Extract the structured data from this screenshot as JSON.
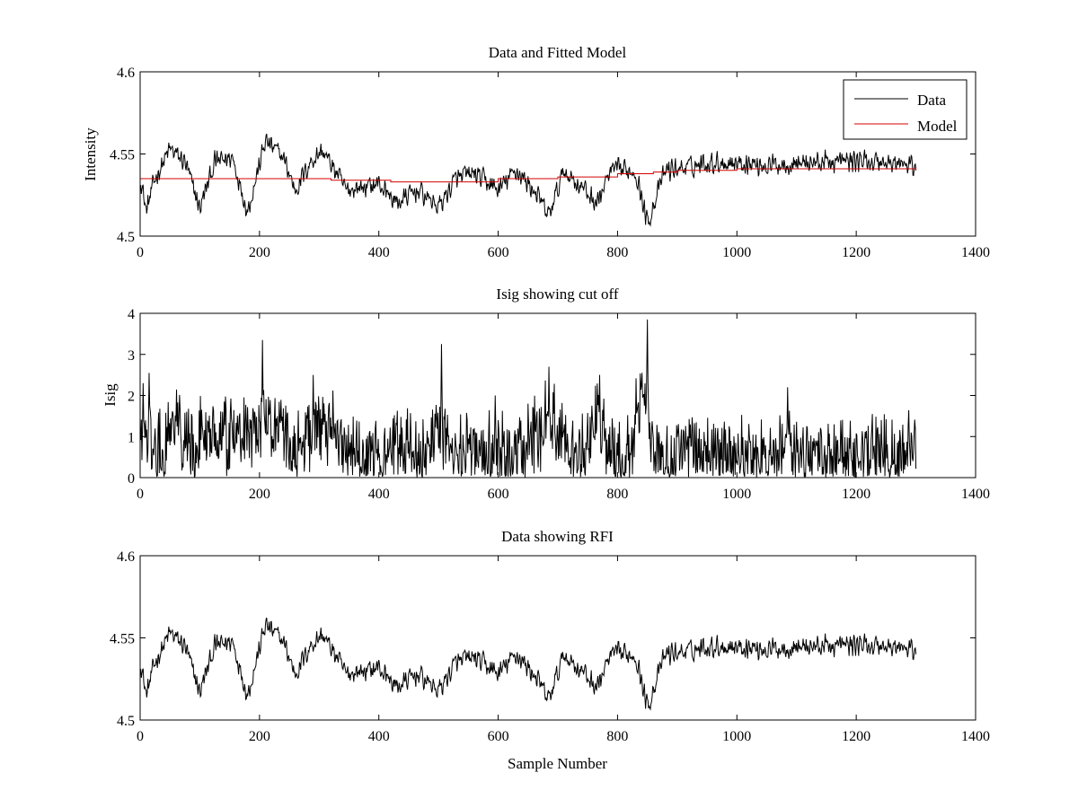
{
  "colors": {
    "data": "#000000",
    "model": "#d40000",
    "axes": "#000000",
    "background": "#ffffff"
  },
  "chart_data": [
    {
      "type": "line",
      "title": "Data and Fitted Model",
      "xlabel": "",
      "ylabel": "Intensity",
      "xlim": [
        0,
        1400
      ],
      "ylim": [
        4.5,
        4.6
      ],
      "xticks": [
        0,
        200,
        400,
        600,
        800,
        1000,
        1200,
        1400
      ],
      "yticks": [
        4.5,
        4.55,
        4.6
      ],
      "xtick_labels": [
        "0",
        "200",
        "400",
        "600",
        "800",
        "1000",
        "1200",
        "1400"
      ],
      "ytick_labels": [
        "4.5",
        "4.55",
        "4.6"
      ],
      "grid": false,
      "legend": {
        "placement": "top-right",
        "entries": [
          "Data",
          "Model"
        ]
      },
      "series": [
        {
          "name": "Data",
          "color": "#000000",
          "x_range": [
            1,
            1300
          ],
          "envelope": [
            [
              0,
              4.538
            ],
            [
              10,
              4.515
            ],
            [
              25,
              4.535
            ],
            [
              50,
              4.553
            ],
            [
              75,
              4.545
            ],
            [
              100,
              4.517
            ],
            [
              125,
              4.545
            ],
            [
              155,
              4.548
            ],
            [
              180,
              4.515
            ],
            [
              210,
              4.558
            ],
            [
              240,
              4.548
            ],
            [
              260,
              4.528
            ],
            [
              285,
              4.545
            ],
            [
              305,
              4.552
            ],
            [
              330,
              4.538
            ],
            [
              345,
              4.528
            ],
            [
              375,
              4.53
            ],
            [
              400,
              4.532
            ],
            [
              430,
              4.52
            ],
            [
              465,
              4.528
            ],
            [
              500,
              4.518
            ],
            [
              530,
              4.535
            ],
            [
              560,
              4.538
            ],
            [
              600,
              4.528
            ],
            [
              630,
              4.54
            ],
            [
              660,
              4.528
            ],
            [
              685,
              4.512
            ],
            [
              710,
              4.54
            ],
            [
              740,
              4.53
            ],
            [
              765,
              4.52
            ],
            [
              790,
              4.54
            ],
            [
              830,
              4.54
            ],
            [
              850,
              4.508
            ],
            [
              880,
              4.54
            ],
            [
              920,
              4.542
            ],
            [
              950,
              4.545
            ],
            [
              1000,
              4.545
            ],
            [
              1050,
              4.543
            ],
            [
              1100,
              4.545
            ],
            [
              1150,
              4.545
            ],
            [
              1200,
              4.546
            ],
            [
              1250,
              4.545
            ],
            [
              1300,
              4.542
            ]
          ],
          "noise_amplitude": 0.008
        },
        {
          "name": "Model",
          "color": "#d40000",
          "x": [
            0,
            240,
            320,
            420,
            520,
            600,
            700,
            760,
            800,
            860,
            900,
            1000,
            1100,
            1300
          ],
          "y": [
            4.535,
            4.535,
            4.534,
            4.533,
            4.533,
            4.535,
            4.536,
            4.536,
            4.538,
            4.539,
            4.54,
            4.541,
            4.541,
            4.542
          ]
        }
      ]
    },
    {
      "type": "line",
      "title": "Isig showing cut off",
      "xlabel": "",
      "ylabel": "Isig",
      "xlim": [
        0,
        1400
      ],
      "ylim": [
        0,
        4
      ],
      "xticks": [
        0,
        200,
        400,
        600,
        800,
        1000,
        1200,
        1400
      ],
      "yticks": [
        0,
        1,
        2,
        3,
        4
      ],
      "xtick_labels": [
        "0",
        "200",
        "400",
        "600",
        "800",
        "1000",
        "1200",
        "1400"
      ],
      "ytick_labels": [
        "0",
        "1",
        "2",
        "3",
        "4"
      ],
      "grid": false,
      "series": [
        {
          "color": "#000000",
          "x_range": [
            1,
            1300
          ],
          "envelope": [
            [
              0,
              0.8
            ],
            [
              10,
              1.2
            ],
            [
              30,
              0.6
            ],
            [
              60,
              1.2
            ],
            [
              100,
              1.0
            ],
            [
              150,
              1.1
            ],
            [
              180,
              1.0
            ],
            [
              210,
              1.5
            ],
            [
              240,
              1.2
            ],
            [
              260,
              0.5
            ],
            [
              300,
              1.5
            ],
            [
              330,
              0.8
            ],
            [
              350,
              0.5
            ],
            [
              400,
              0.6
            ],
            [
              430,
              0.8
            ],
            [
              470,
              0.6
            ],
            [
              500,
              1.0
            ],
            [
              520,
              0.6
            ],
            [
              560,
              0.5
            ],
            [
              600,
              0.6
            ],
            [
              640,
              0.6
            ],
            [
              670,
              1.0
            ],
            [
              685,
              1.8
            ],
            [
              700,
              0.8
            ],
            [
              740,
              0.6
            ],
            [
              765,
              1.4
            ],
            [
              790,
              0.5
            ],
            [
              820,
              0.5
            ],
            [
              845,
              2.3
            ],
            [
              860,
              0.5
            ],
            [
              900,
              0.6
            ],
            [
              1000,
              0.5
            ],
            [
              1100,
              0.5
            ],
            [
              1200,
              0.5
            ],
            [
              1300,
              0.6
            ]
          ],
          "noise_amplitude": 0.8,
          "peaks": [
            [
              5,
              2.3
            ],
            [
              15,
              2.55
            ],
            [
              205,
              3.35
            ],
            [
              290,
              2.5
            ],
            [
              505,
              3.25
            ],
            [
              595,
              2.0
            ],
            [
              685,
              2.7
            ],
            [
              770,
              2.5
            ],
            [
              850,
              3.85
            ],
            [
              1085,
              2.2
            ]
          ]
        }
      ]
    },
    {
      "type": "line",
      "title": "Data showing RFI",
      "xlabel": "Sample Number",
      "ylabel": "",
      "xlim": [
        0,
        1400
      ],
      "ylim": [
        4.5,
        4.6
      ],
      "xticks": [
        0,
        200,
        400,
        600,
        800,
        1000,
        1200,
        1400
      ],
      "yticks": [
        4.5,
        4.55,
        4.6
      ],
      "xtick_labels": [
        "0",
        "200",
        "400",
        "600",
        "800",
        "1000",
        "1200",
        "1400"
      ],
      "ytick_labels": [
        "4.5",
        "4.55",
        "4.6"
      ],
      "grid": false,
      "series": [
        {
          "color": "#000000",
          "x_range": [
            1,
            1300
          ],
          "envelope": [
            [
              0,
              4.538
            ],
            [
              10,
              4.515
            ],
            [
              25,
              4.535
            ],
            [
              50,
              4.553
            ],
            [
              75,
              4.545
            ],
            [
              100,
              4.517
            ],
            [
              125,
              4.545
            ],
            [
              155,
              4.548
            ],
            [
              180,
              4.515
            ],
            [
              210,
              4.558
            ],
            [
              240,
              4.548
            ],
            [
              260,
              4.528
            ],
            [
              285,
              4.545
            ],
            [
              305,
              4.552
            ],
            [
              330,
              4.538
            ],
            [
              345,
              4.528
            ],
            [
              375,
              4.53
            ],
            [
              400,
              4.532
            ],
            [
              430,
              4.52
            ],
            [
              465,
              4.528
            ],
            [
              500,
              4.518
            ],
            [
              530,
              4.535
            ],
            [
              560,
              4.538
            ],
            [
              600,
              4.528
            ],
            [
              630,
              4.54
            ],
            [
              660,
              4.528
            ],
            [
              685,
              4.512
            ],
            [
              710,
              4.54
            ],
            [
              740,
              4.53
            ],
            [
              765,
              4.52
            ],
            [
              790,
              4.54
            ],
            [
              830,
              4.54
            ],
            [
              850,
              4.508
            ],
            [
              880,
              4.54
            ],
            [
              920,
              4.542
            ],
            [
              950,
              4.545
            ],
            [
              1000,
              4.545
            ],
            [
              1050,
              4.543
            ],
            [
              1100,
              4.545
            ],
            [
              1150,
              4.545
            ],
            [
              1200,
              4.546
            ],
            [
              1250,
              4.545
            ],
            [
              1300,
              4.542
            ]
          ],
          "noise_amplitude": 0.008
        }
      ]
    }
  ]
}
